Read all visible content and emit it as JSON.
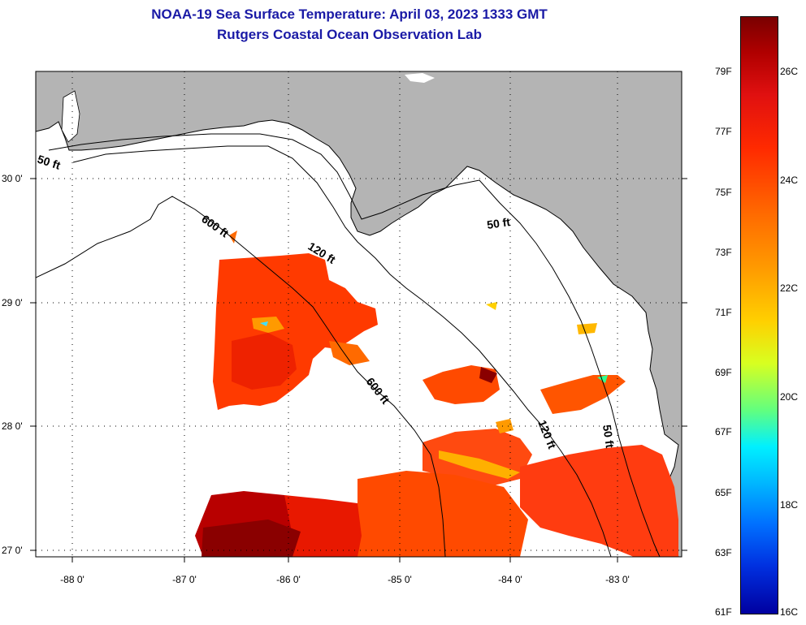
{
  "title": {
    "line1": "NOAA-19 Sea Surface Temperature:  April 03, 2023 1333 GMT",
    "line2": "Rutgers Coastal Ocean Observation Lab"
  },
  "map": {
    "lon_labels": [
      "-88 0'",
      "-87 0'",
      "-86 0'",
      "-85 0'",
      "-84 0'",
      "-83 0'"
    ],
    "lat_labels": [
      "30 0'",
      "29 0'",
      "28 0'",
      "27 0'"
    ],
    "contour_labels": [
      "50 ft",
      "600 ft",
      "120 ft",
      "50 ft",
      "600 ft",
      "120 ft",
      "50 ft"
    ],
    "colors": {
      "land": "#b4b4b4",
      "ocean": "#ffffff",
      "contour": "#000000"
    }
  },
  "colorbar": {
    "fahrenheit": [
      "79F",
      "77F",
      "75F",
      "73F",
      "71F",
      "69F",
      "67F",
      "65F",
      "63F",
      "61F"
    ],
    "celsius": [
      "26C",
      "24C",
      "22C",
      "20C",
      "18C",
      "16C"
    ]
  }
}
